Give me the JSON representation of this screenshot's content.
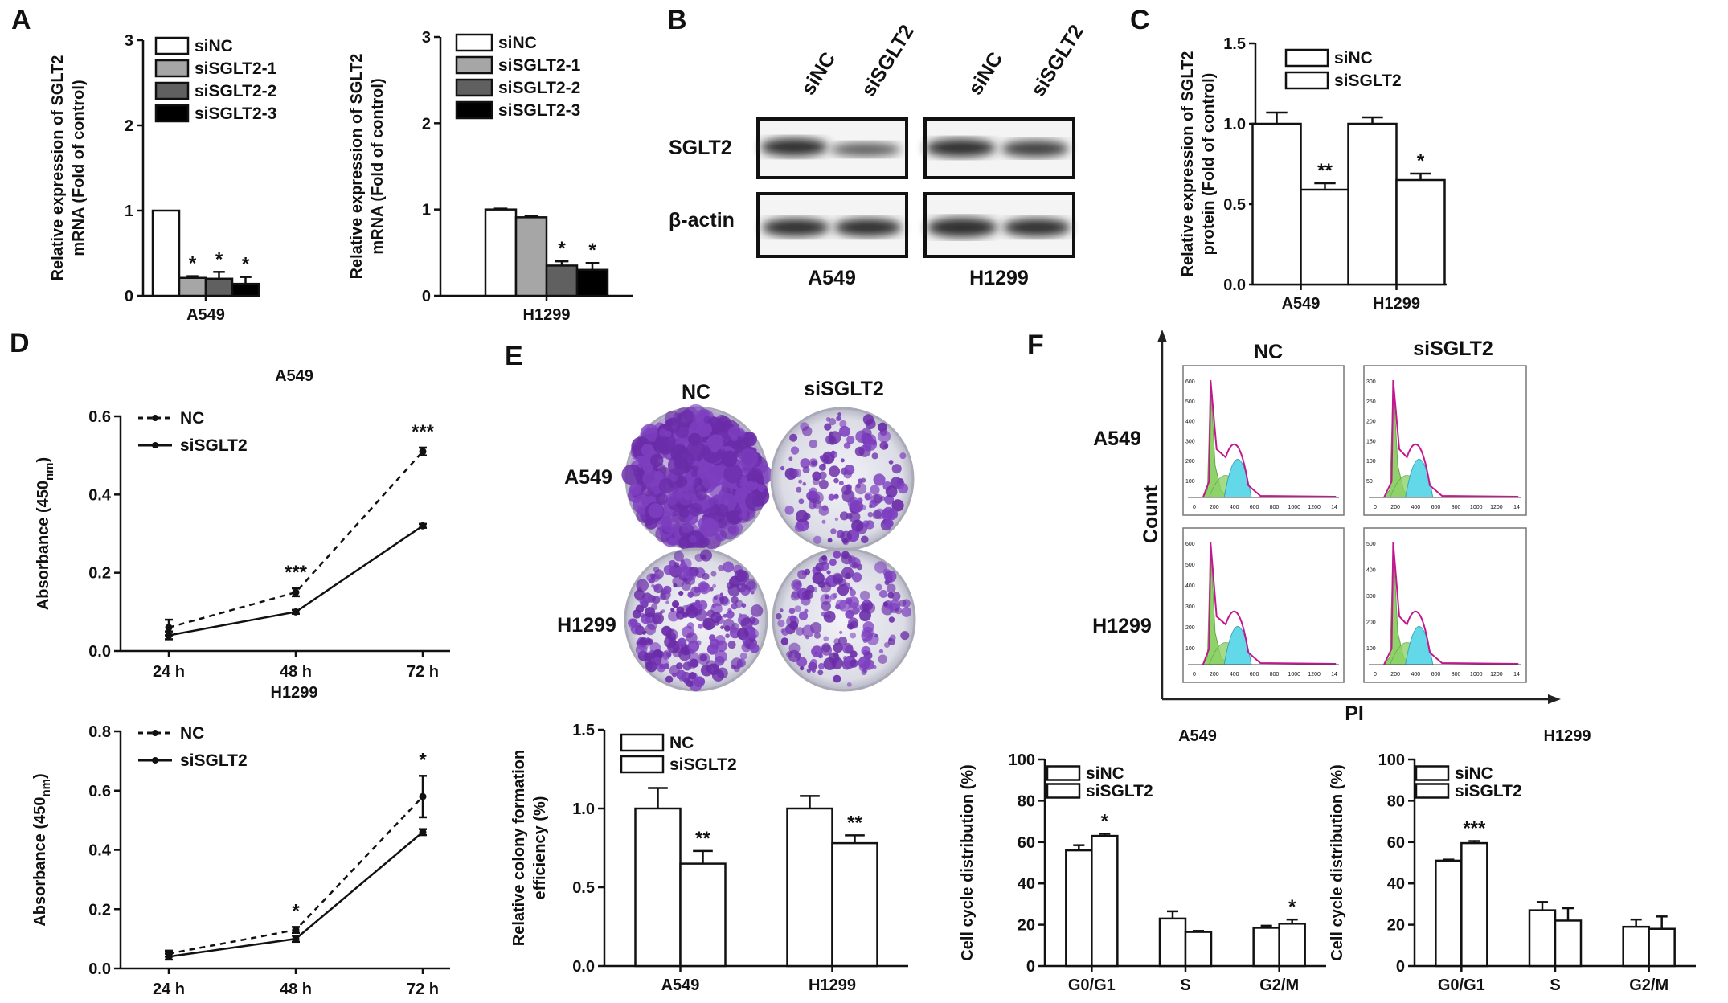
{
  "panels": {
    "A": {
      "label": "A"
    },
    "B": {
      "label": "B",
      "lane_labels": [
        "siNC",
        "siSGLT2",
        "siNC",
        "siSGLT2"
      ],
      "row_labels": [
        "SGLT2",
        "β-actin"
      ],
      "groups": [
        "A549",
        "H1299"
      ]
    },
    "C": {
      "label": "C"
    },
    "D": {
      "label": "D"
    },
    "E": {
      "label": "E",
      "col_labels": [
        "NC",
        "siSGLT2"
      ],
      "row_labels": [
        "A549",
        "H1299"
      ]
    },
    "F": {
      "label": "F",
      "col_labels": [
        "NC",
        "siSGLT2"
      ],
      "row_labels": [
        "A549",
        "H1299"
      ],
      "axis_x": "PI",
      "axis_y": "Count",
      "hist_ticks": {
        "top_left": [
          "600",
          "500",
          "400",
          "300",
          "200",
          "100"
        ],
        "top_right": [
          "300",
          "250",
          "200",
          "150",
          "100",
          "50"
        ],
        "bottom_left": [
          "600",
          "500",
          "400",
          "300",
          "200",
          "100"
        ],
        "bottom_right": [
          "500",
          "400",
          "300",
          "200",
          "100"
        ],
        "x": [
          "0",
          "200",
          "400",
          "600",
          "800",
          "1000",
          "1200",
          "14"
        ]
      }
    }
  },
  "colors": {
    "siNC": "#ffffff",
    "siSGLT2-1": "#a6a6a6",
    "siSGLT2-2": "#606060",
    "siSGLT2-3": "#000000",
    "bar_edge": "#000000",
    "crystal_violet": "#6a2ca8",
    "flow_green": "#8ed36a",
    "flow_cyan": "#63d8e8",
    "flow_magenta": "#c2188f"
  },
  "chart_data": [
    {
      "id": "A-A549",
      "type": "bar",
      "title": "",
      "ylabel": "Relative expression of SGLT2 mRNA (Fold of control)",
      "xlabel": "A549",
      "ylim": [
        0,
        3
      ],
      "yticks": [
        "0",
        "1",
        "2",
        "3"
      ],
      "series": [
        {
          "name": "siNC",
          "values": [
            1.0
          ],
          "err": [
            0
          ],
          "sig": [
            ""
          ]
        },
        {
          "name": "siSGLT2-1",
          "values": [
            0.21
          ],
          "err": [
            0.02
          ],
          "sig": [
            "*"
          ]
        },
        {
          "name": "siSGLT2-2",
          "values": [
            0.2
          ],
          "err": [
            0.08
          ],
          "sig": [
            "*"
          ]
        },
        {
          "name": "siSGLT2-3",
          "values": [
            0.14
          ],
          "err": [
            0.08
          ],
          "sig": [
            "*"
          ]
        }
      ]
    },
    {
      "id": "A-H1299",
      "type": "bar",
      "title": "",
      "ylabel": "Relative expression of SGLT2 mRNA (Fold of control)",
      "xlabel": "H1299",
      "ylim": [
        0,
        3
      ],
      "yticks": [
        "0",
        "1",
        "2",
        "3"
      ],
      "series": [
        {
          "name": "siNC",
          "values": [
            1.0
          ],
          "err": [
            0.01
          ],
          "sig": [
            ""
          ]
        },
        {
          "name": "siSGLT2-1",
          "values": [
            0.91
          ],
          "err": [
            0.01
          ],
          "sig": [
            ""
          ]
        },
        {
          "name": "siSGLT2-2",
          "values": [
            0.35
          ],
          "err": [
            0.05
          ],
          "sig": [
            "*"
          ]
        },
        {
          "name": "siSGLT2-3",
          "values": [
            0.3
          ],
          "err": [
            0.08
          ],
          "sig": [
            "*"
          ]
        }
      ]
    },
    {
      "id": "C",
      "type": "bar",
      "title": "",
      "ylabel": "Relative expression of SGLT2 protein (Fold of control)",
      "categories": [
        "A549",
        "H1299"
      ],
      "ylim": [
        0,
        1.5
      ],
      "yticks": [
        "0.0",
        "0.5",
        "1.0",
        "1.5"
      ],
      "series": [
        {
          "name": "siNC",
          "values": [
            1.0,
            1.0
          ],
          "err": [
            0.07,
            0.04
          ],
          "sig": [
            "",
            ""
          ]
        },
        {
          "name": "siSGLT2",
          "values": [
            0.59,
            0.65
          ],
          "err": [
            0.04,
            0.04
          ],
          "sig": [
            "**",
            "*"
          ]
        }
      ]
    },
    {
      "id": "D-A549",
      "type": "line",
      "title": "A549",
      "ylabel": "Absorbance (450 nm)",
      "categories": [
        "24 h",
        "48 h",
        "72 h"
      ],
      "ylim": [
        0,
        0.6
      ],
      "yticks": [
        "0.0",
        "0.2",
        "0.4",
        "0.6"
      ],
      "sig": [
        "",
        "***",
        "***"
      ],
      "series": [
        {
          "name": "NC",
          "values": [
            0.06,
            0.15,
            0.51
          ],
          "err": [
            0.02,
            0.01,
            0.01
          ],
          "dash": true
        },
        {
          "name": "siSGLT2",
          "values": [
            0.04,
            0.1,
            0.32
          ],
          "err": [
            0.01,
            0.005,
            0.005
          ],
          "dash": false
        }
      ]
    },
    {
      "id": "D-H1299",
      "type": "line",
      "title": "H1299",
      "ylabel": "Absorbance (450 nm)",
      "categories": [
        "24 h",
        "48 h",
        "72 h"
      ],
      "ylim": [
        0,
        0.8
      ],
      "yticks": [
        "0.0",
        "0.2",
        "0.4",
        "0.6",
        "0.8"
      ],
      "sig": [
        "",
        "*",
        "*"
      ],
      "series": [
        {
          "name": "NC",
          "values": [
            0.05,
            0.13,
            0.58
          ],
          "err": [
            0.01,
            0.01,
            0.07
          ],
          "dash": true
        },
        {
          "name": "siSGLT2",
          "values": [
            0.04,
            0.1,
            0.46
          ],
          "err": [
            0.01,
            0.01,
            0.01
          ],
          "dash": false
        }
      ]
    },
    {
      "id": "E-bar",
      "type": "bar",
      "title": "",
      "ylabel": "Relative colony formation efficiency (%)",
      "categories": [
        "A549",
        "H1299"
      ],
      "ylim": [
        0,
        1.5
      ],
      "yticks": [
        "0.0",
        "0.5",
        "1.0",
        "1.5"
      ],
      "series": [
        {
          "name": "NC",
          "values": [
            1.0,
            1.0
          ],
          "err": [
            0.13,
            0.08
          ],
          "sig": [
            "",
            ""
          ]
        },
        {
          "name": "siSGLT2",
          "values": [
            0.65,
            0.78
          ],
          "err": [
            0.08,
            0.05
          ],
          "sig": [
            "**",
            "**"
          ]
        }
      ]
    },
    {
      "id": "F-A549",
      "type": "bar",
      "title": "A549",
      "ylabel": "Cell cycle distribution (%)",
      "categories": [
        "G0/G1",
        "S",
        "G2/M"
      ],
      "ylim": [
        0,
        100
      ],
      "yticks": [
        "0",
        "20",
        "40",
        "60",
        "80",
        "100"
      ],
      "series": [
        {
          "name": "siNC",
          "values": [
            56,
            23,
            18.5
          ],
          "err": [
            2.5,
            3.5,
            1
          ],
          "sig": [
            "",
            "",
            ""
          ]
        },
        {
          "name": "siSGLT2",
          "values": [
            63,
            16.5,
            20.5
          ],
          "err": [
            1,
            0.5,
            2
          ],
          "sig": [
            "*",
            "",
            "*"
          ]
        }
      ]
    },
    {
      "id": "F-H1299",
      "type": "bar",
      "title": "H1299",
      "ylabel": "Cell cycle distribution (%)",
      "categories": [
        "G0/G1",
        "S",
        "G2/M"
      ],
      "ylim": [
        0,
        100
      ],
      "yticks": [
        "0",
        "20",
        "40",
        "60",
        "80",
        "100"
      ],
      "series": [
        {
          "name": "siNC",
          "values": [
            51,
            27,
            19
          ],
          "err": [
            0.5,
            4,
            3.5
          ],
          "sig": [
            "",
            "",
            ""
          ]
        },
        {
          "name": "siSGLT2",
          "values": [
            59.5,
            22,
            18
          ],
          "err": [
            1,
            6,
            6
          ],
          "sig": [
            "***",
            "",
            ""
          ]
        }
      ]
    }
  ]
}
